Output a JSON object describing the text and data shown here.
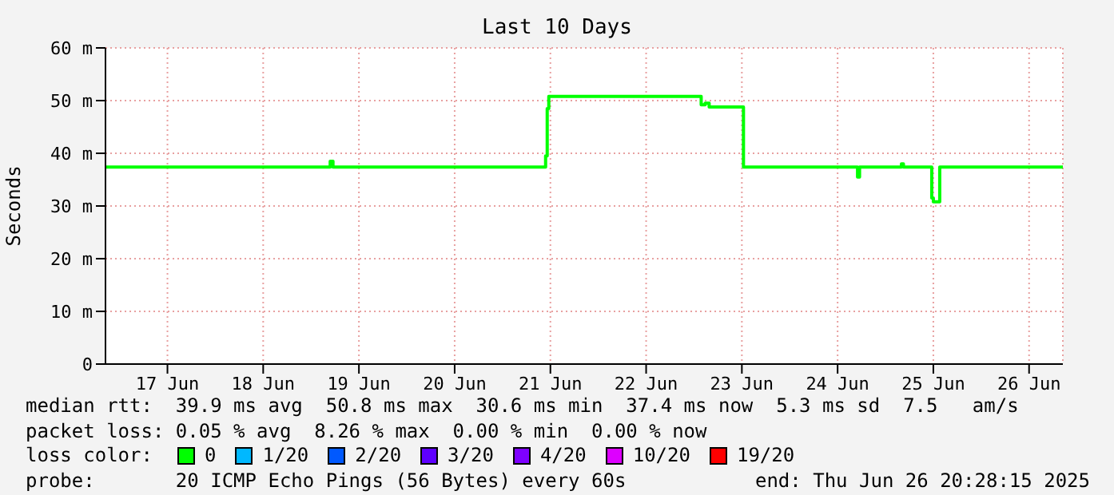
{
  "chart_data": {
    "type": "step",
    "title": "Last 10 Days",
    "ylabel": "Seconds",
    "x": [
      "2025-06-16T20:28",
      "2025-06-19T04:30",
      "2025-06-19T04:48",
      "2025-06-19T05:30",
      "2025-06-21T10:48",
      "2025-06-21T11:12",
      "2025-06-21T11:36",
      "2025-06-23T01:48",
      "2025-06-23T02:48",
      "2025-06-23T03:48",
      "2025-06-23T12:24",
      "2025-06-24T17:00",
      "2025-06-24T17:30",
      "2025-06-25T04:00",
      "2025-06-25T04:30",
      "2025-06-25T11:36",
      "2025-06-25T12:00",
      "2025-06-25T13:36",
      "2025-06-26T20:28"
    ],
    "series": [
      {
        "name": "0",
        "color": "#00ff00",
        "values": [
          37.4,
          37.4,
          38.5,
          37.4,
          39.5,
          48.5,
          50.8,
          49.2,
          49.5,
          48.8,
          37.4,
          35.5,
          37.4,
          38,
          37.4,
          31.5,
          30.8,
          37.4,
          37.4
        ]
      },
      {
        "name": "1/20",
        "color": "#00b8ff",
        "values": [
          null,
          null,
          null,
          null,
          null,
          null,
          null,
          null,
          null,
          null,
          null,
          null,
          null,
          null,
          null,
          null,
          null,
          null,
          null
        ]
      },
      {
        "name": "2/20",
        "color": "#0059ff",
        "values": [
          null,
          null,
          null,
          null,
          null,
          null,
          null,
          null,
          null,
          null,
          null,
          null,
          null,
          null,
          null,
          null,
          null,
          null,
          null
        ]
      },
      {
        "name": "3/20",
        "color": "#5e00ff",
        "values": [
          null,
          null,
          null,
          null,
          null,
          null,
          null,
          null,
          null,
          null,
          null,
          null,
          null,
          null,
          null,
          null,
          null,
          null,
          null
        ]
      },
      {
        "name": "4/20",
        "color": "#7e00ff",
        "values": [
          null,
          null,
          null,
          null,
          null,
          null,
          null,
          null,
          null,
          null,
          null,
          null,
          null,
          null,
          null,
          null,
          null,
          null,
          null
        ]
      },
      {
        "name": "10/20",
        "color": "#dd00ff",
        "values": [
          null,
          null,
          null,
          null,
          null,
          null,
          null,
          null,
          null,
          null,
          null,
          null,
          null,
          null,
          null,
          null,
          null,
          null,
          null
        ]
      },
      {
        "name": "19/20",
        "color": "#ff0000",
        "values": [
          null,
          null,
          null,
          null,
          null,
          null,
          null,
          null,
          null,
          null,
          null,
          null,
          null,
          null,
          null,
          null,
          null,
          null,
          null
        ]
      }
    ],
    "legend": "bottom",
    "legend_title": "loss color:",
    "grid": true,
    "marker": "none",
    "xlim": [
      "2025-06-16T20:28",
      "2025-06-26T20:28"
    ],
    "xticks": [
      {
        "value": "2025-06-17T12:00",
        "label": "17 Jun"
      },
      {
        "value": "2025-06-18T12:00",
        "label": "18 Jun"
      },
      {
        "value": "2025-06-19T12:00",
        "label": "19 Jun"
      },
      {
        "value": "2025-06-20T12:00",
        "label": "20 Jun"
      },
      {
        "value": "2025-06-21T12:00",
        "label": "21 Jun"
      },
      {
        "value": "2025-06-22T12:00",
        "label": "22 Jun"
      },
      {
        "value": "2025-06-23T12:00",
        "label": "23 Jun"
      },
      {
        "value": "2025-06-24T12:00",
        "label": "24 Jun"
      },
      {
        "value": "2025-06-25T12:00",
        "label": "25 Jun"
      },
      {
        "value": "2025-06-26T12:00",
        "label": "26 Jun"
      }
    ],
    "ylim": [
      0,
      60
    ],
    "yticks": [
      0,
      {
        "value": 10,
        "label": "10 m"
      },
      {
        "value": 20,
        "label": "20 m"
      },
      {
        "value": 30,
        "label": "30 m"
      },
      {
        "value": 40,
        "label": "40 m"
      },
      {
        "value": 50,
        "label": "50 m"
      },
      {
        "value": 60,
        "label": "60 m"
      }
    ],
    "annotations": [
      "median rtt:  39.9 ms avg  50.8 ms max  30.6 ms min  37.4 ms now  5.3 ms sd  7.5   am/s",
      "packet loss: 0.05 % avg  8.26 % max  0.00 % min  0.00 % now",
      "probe:       20 ICMP Echo Pings (56 Bytes) every 60s",
      "end: Thu Jun 26 20:28:15 2025"
    ]
  }
}
